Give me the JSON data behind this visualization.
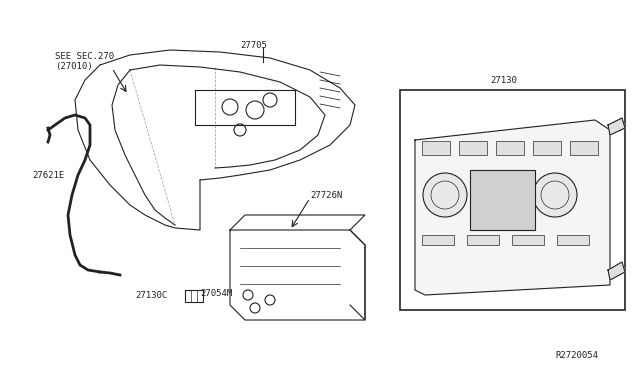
{
  "bg_color": "#ffffff",
  "fig_width": 6.4,
  "fig_height": 3.72,
  "dpi": 100,
  "labels": {
    "see_sec": "SEE SEC.270\n(27010)",
    "p27705": "27705",
    "p27621E": "27621E",
    "p27726N": "27726N",
    "p27130": "27130",
    "p27130C": "27130C",
    "p27054M": "27054M",
    "ref_code": "R2720054"
  },
  "line_color": "#222222",
  "box_color": "#444444",
  "label_fontsize": 6.5,
  "ref_fontsize": 6.5,
  "title_fontsize": 8
}
